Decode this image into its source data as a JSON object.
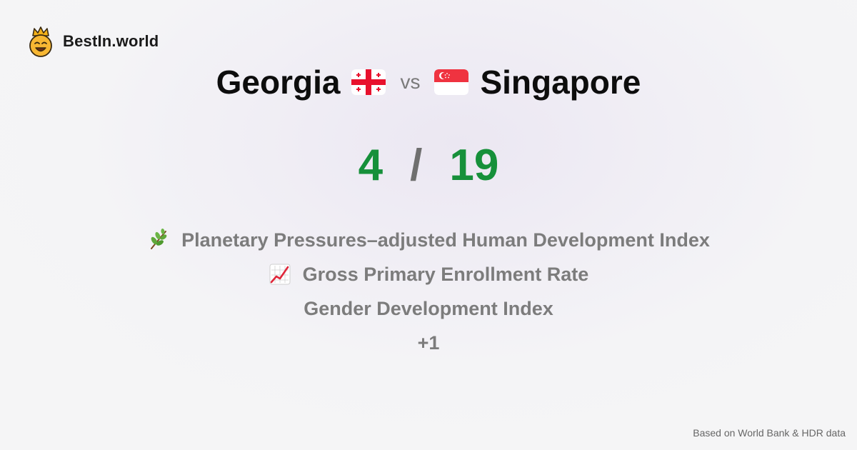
{
  "brand": {
    "name": "BestIn.world",
    "logo_icon": "crowned-smiley-icon"
  },
  "comparison": {
    "country_a": {
      "name": "Georgia",
      "flag_icon": "georgia-flag-icon"
    },
    "vs_label": "vs",
    "country_b": {
      "name": "Singapore",
      "flag_icon": "singapore-flag-icon"
    }
  },
  "score": {
    "a": "4",
    "separator": "/",
    "b": "19",
    "color": "#16903a"
  },
  "metrics": [
    {
      "icon": "herb-icon",
      "label": "Planetary Pressures–adjusted Human Development Index"
    },
    {
      "icon": "chart-increasing-icon",
      "label": "Gross Primary Enrollment Rate"
    },
    {
      "icon": "",
      "label": "Gender Development Index"
    },
    {
      "icon": "",
      "label": "+1"
    }
  ],
  "footer": {
    "source": "Based on World Bank & HDR data"
  }
}
